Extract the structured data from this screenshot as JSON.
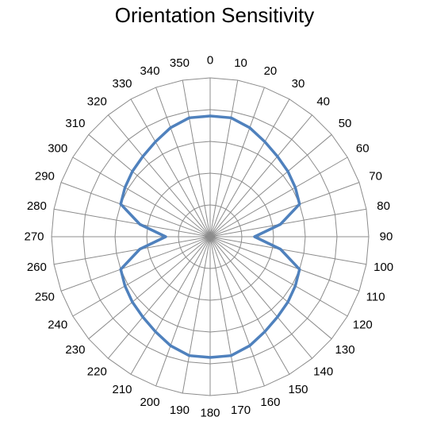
{
  "chart_data": {
    "type": "radar",
    "title": "Orientation Sensitivity",
    "angle_unit": "degrees",
    "angles": [
      0,
      10,
      20,
      30,
      40,
      50,
      60,
      70,
      80,
      90,
      100,
      110,
      120,
      130,
      140,
      150,
      160,
      170,
      180,
      190,
      200,
      210,
      220,
      230,
      240,
      250,
      260,
      270,
      280,
      290,
      300,
      310,
      320,
      330,
      340,
      350
    ],
    "tick_labels": [
      "0",
      "10",
      "20",
      "30",
      "40",
      "50",
      "60",
      "70",
      "80",
      "90",
      "100",
      "110",
      "120",
      "130",
      "140",
      "150",
      "160",
      "170",
      "180",
      "190",
      "200",
      "210",
      "220",
      "230",
      "240",
      "250",
      "260",
      "270",
      "280",
      "290",
      "300",
      "310",
      "320",
      "330",
      "340",
      "350"
    ],
    "rlim": [
      0,
      1
    ],
    "rings": [
      0.2,
      0.4,
      0.6,
      0.8,
      1.0
    ],
    "grid": true,
    "series": [
      {
        "color": "#4F81BD",
        "values": [
          0.76,
          0.76,
          0.73,
          0.69,
          0.66,
          0.64,
          0.62,
          0.6,
          0.45,
          0.28,
          0.45,
          0.6,
          0.62,
          0.64,
          0.66,
          0.69,
          0.73,
          0.76,
          0.76,
          0.76,
          0.73,
          0.69,
          0.66,
          0.64,
          0.62,
          0.6,
          0.45,
          0.28,
          0.45,
          0.6,
          0.62,
          0.64,
          0.66,
          0.69,
          0.73,
          0.76
        ]
      }
    ]
  },
  "colors": {
    "grid": "#8C8C8C",
    "spoke": "#8C8C8C",
    "series": "#4F81BD"
  }
}
